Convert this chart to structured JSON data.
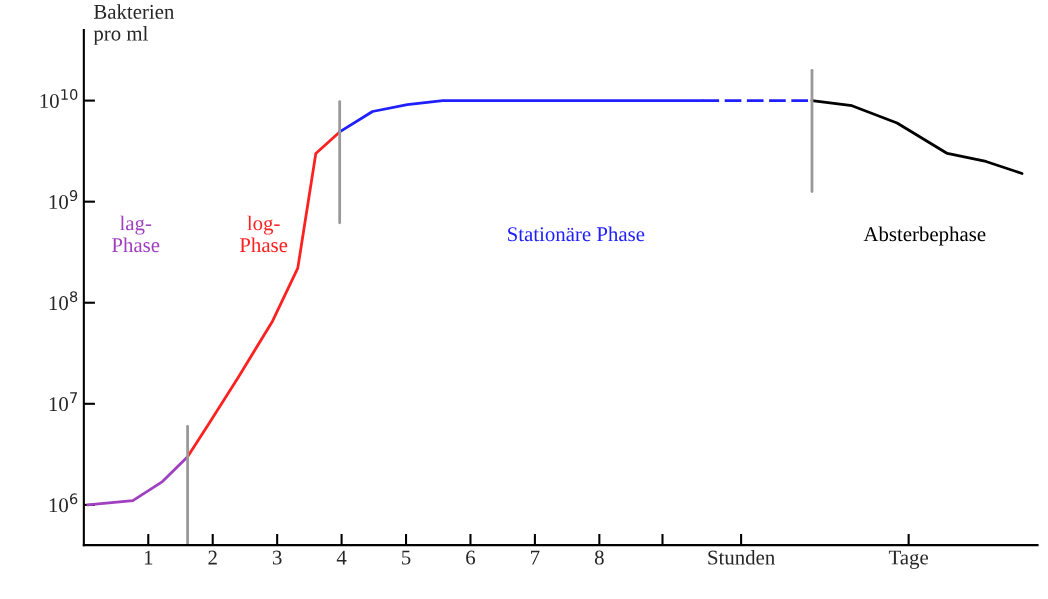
{
  "chart_data": {
    "type": "line",
    "ylabel": "Bakterien\npro ml",
    "log": "y",
    "xlim": [
      0,
      14.8
    ],
    "xticks": [
      1,
      2,
      3,
      4,
      5,
      6,
      7,
      8,
      {
        "value": 8.98,
        "label": null
      },
      {
        "value": 10.2,
        "label": "Stunden"
      },
      {
        "value": 12.8,
        "label": "Tage"
      }
    ],
    "ylim": [
      400000,
      50000000000
    ],
    "yticks": [
      {
        "value": 1000000,
        "label": "10$^{6}$"
      },
      {
        "value": 10000000,
        "label": "10$^{7}$"
      },
      {
        "value": 100000000,
        "label": "10$^{8}$"
      },
      {
        "value": 1000000000,
        "label": "10$^{9}$"
      },
      {
        "value": 10000000000,
        "label": "10$^{10}$"
      }
    ],
    "series": [
      {
        "color": "#a040c0",
        "x": [
          0.06,
          0.76,
          1.22,
          1.61
        ],
        "values": [
          1000000,
          1100000,
          1700000,
          3000000
        ]
      },
      {
        "color": "#ff2020",
        "x": [
          1.61,
          1.95,
          2.39,
          2.93,
          3.32,
          3.6,
          3.97
        ],
        "values": [
          3000000,
          6500000,
          18000000,
          66000000,
          220000000,
          3000000000,
          4900000000
        ]
      },
      {
        "color": "#2020ff",
        "x": [
          3.97,
          4.48,
          5.02,
          5.57,
          9.6
        ],
        "values": [
          4900000000,
          7800000000,
          9100000000,
          10000000000,
          10000000000
        ]
      },
      {
        "color": "#2020ff",
        "line_style": "dashed",
        "x": [
          9.6,
          11.3
        ],
        "values": [
          10000000000,
          10000000000
        ]
      },
      {
        "color": "#000000",
        "x": [
          11.3,
          11.92,
          12.62,
          13.4,
          14.0,
          14.56
        ],
        "values": [
          10000000000,
          8900000000,
          6000000000,
          3000000000,
          2500000000,
          1900000000
        ]
      }
    ],
    "ref_lines": [
      {
        "axis": "x",
        "value": 1.61,
        "color": "#999999"
      },
      {
        "axis": "x",
        "value": 3.97,
        "color": "#999999"
      },
      {
        "axis": "x",
        "value": 11.3,
        "color": "#999999"
      }
    ],
    "annotations": [
      "lag-\nPhase",
      "log-\nPhase",
      "Stationäre Phase",
      "Absterbephase"
    ],
    "legend": false,
    "grid": false
  }
}
